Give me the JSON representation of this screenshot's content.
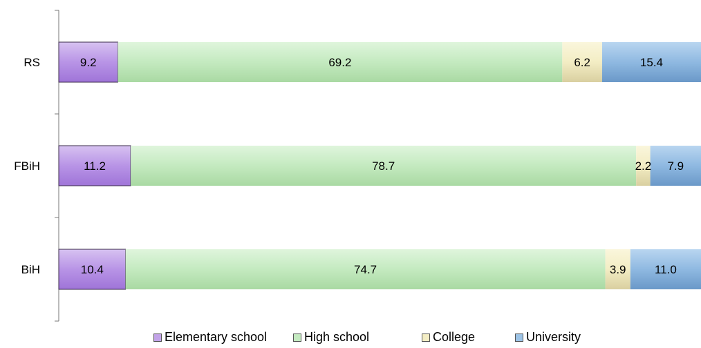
{
  "chart_data": {
    "type": "bar",
    "orientation": "horizontal",
    "stacked": true,
    "categories": [
      "RS",
      "FBiH",
      "BiH"
    ],
    "series": [
      {
        "name": "Elementary school",
        "values": [
          9.2,
          11.2,
          10.4
        ],
        "color": "#c2a3e8"
      },
      {
        "name": "High school",
        "values": [
          69.2,
          78.7,
          74.7
        ],
        "color": "#c4eac0"
      },
      {
        "name": "College",
        "values": [
          6.2,
          2.2,
          3.9
        ],
        "color": "#f3edc4"
      },
      {
        "name": "University",
        "values": [
          15.4,
          7.9,
          11.0
        ],
        "color": "#9cc3e6"
      }
    ],
    "title": "",
    "xlabel": "",
    "ylabel": "",
    "xlim": [
      0,
      100
    ],
    "grid": false,
    "legend": "bottom"
  }
}
